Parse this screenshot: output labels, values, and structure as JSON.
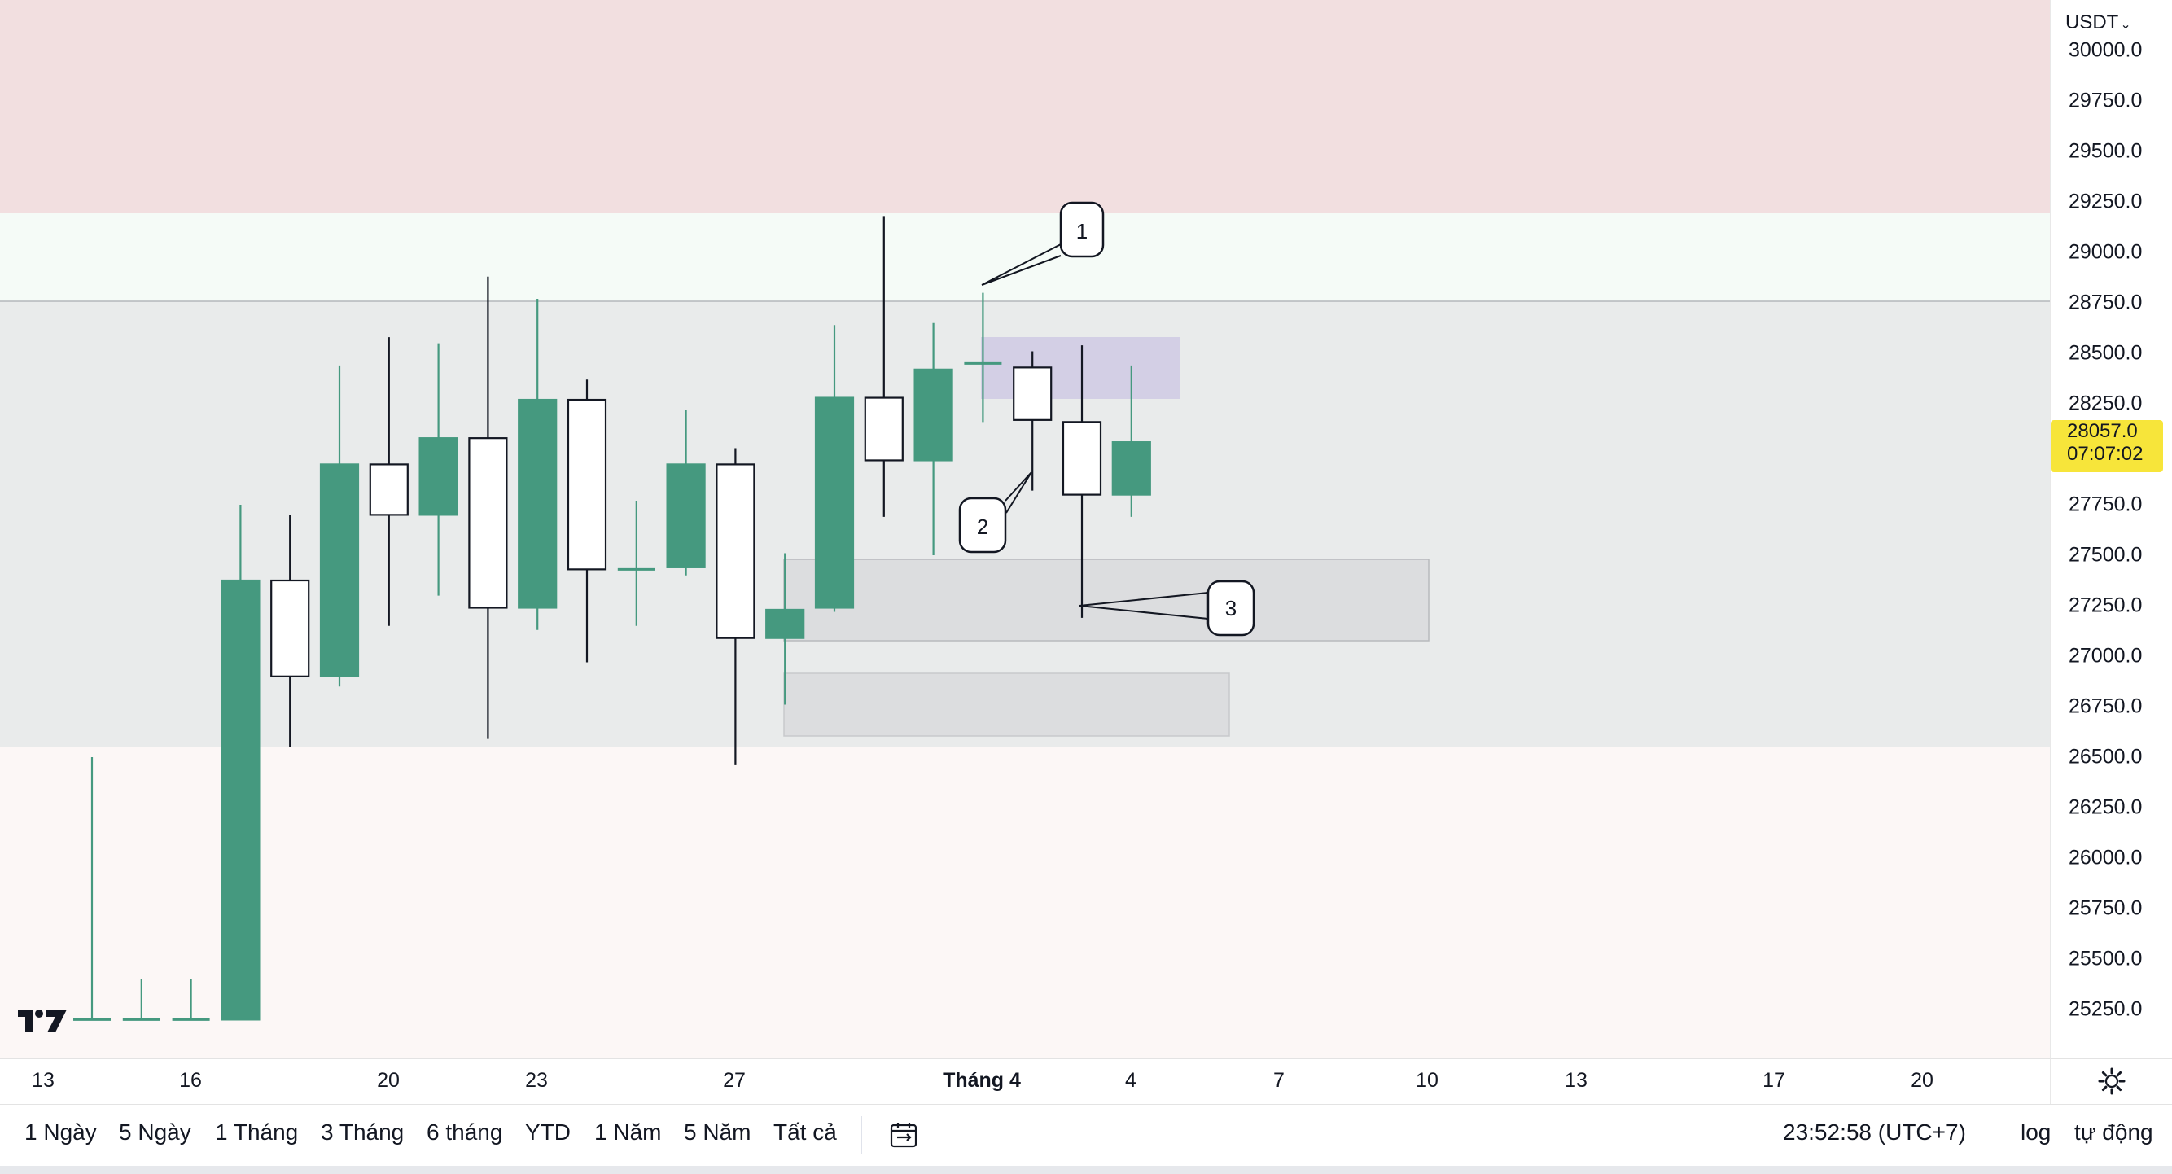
{
  "currency": "USDT",
  "price_axis": {
    "ticks": [
      "30000.0",
      "29750.0",
      "29500.0",
      "29250.0",
      "29000.0",
      "28750.0",
      "28500.0",
      "28250.0",
      "27750.0",
      "27500.0",
      "27250.0",
      "27000.0",
      "26750.0",
      "26500.0",
      "26250.0",
      "26000.0",
      "25750.0",
      "25500.0",
      "25250.0"
    ],
    "tick_values": [
      30000,
      29750,
      29500,
      29250,
      29000,
      28750,
      28500,
      28250,
      27750,
      27500,
      27250,
      27000,
      26750,
      26500,
      26250,
      26000,
      25750,
      25500,
      25250
    ],
    "last_price": "28057.0",
    "countdown": "07:07:02"
  },
  "time_axis": {
    "ticks": [
      {
        "label": "13",
        "bold": false
      },
      {
        "label": "16",
        "bold": false
      },
      {
        "label": "20",
        "bold": false
      },
      {
        "label": "23",
        "bold": false
      },
      {
        "label": "27",
        "bold": false
      },
      {
        "label": "Tháng 4",
        "bold": true
      },
      {
        "label": "4",
        "bold": false
      },
      {
        "label": "7",
        "bold": false
      },
      {
        "label": "10",
        "bold": false
      },
      {
        "label": "13",
        "bold": false
      },
      {
        "label": "17",
        "bold": false
      },
      {
        "label": "20",
        "bold": false
      }
    ]
  },
  "toolbar": {
    "ranges": [
      "1 Ngày",
      "5 Ngày",
      "1 Tháng",
      "3 Tháng",
      "6 tháng",
      "YTD",
      "1 Năm",
      "5 Năm",
      "Tất cả"
    ],
    "clock": "23:52:58 (UTC+7)",
    "log_label": "log",
    "auto_label": "tự động"
  },
  "colors": {
    "up": "#45997f",
    "down_fill": "#ffffff",
    "down_border": "#131722",
    "supply_zone": "#f2dfe0",
    "range_zone": "#e9ebeb",
    "demand_zone": "#fcf7f6",
    "premium_zone": "#f5fbf7",
    "box_gray": "#dcdddf",
    "box_purple": "#d3cfe5",
    "last_price_bg": "#f7e53a"
  },
  "callouts": [
    "1",
    "2",
    "3"
  ],
  "chart_data": {
    "type": "candlestick",
    "y_axis": {
      "min": 25250,
      "max": 30000,
      "ticks": [
        30000,
        29750,
        29500,
        29250,
        29000,
        28750,
        28500,
        28250,
        27750,
        27500,
        27250,
        27000,
        26750,
        26500,
        26250,
        26000,
        25750,
        25500,
        25250
      ]
    },
    "candles": [
      {
        "x": "13",
        "open": 25200,
        "high": 26500,
        "low": 25200,
        "close": 25200,
        "dir": "up"
      },
      {
        "x": "14",
        "open": 25200,
        "high": 25400,
        "low": 25200,
        "close": 25200,
        "dir": "up"
      },
      {
        "x": "15",
        "open": 25200,
        "high": 25400,
        "low": 25200,
        "close": 25200,
        "dir": "up"
      },
      {
        "x": "16",
        "open": 25200,
        "high": 27750,
        "low": 25200,
        "close": 27375,
        "dir": "up"
      },
      {
        "x": "17",
        "open": 27375,
        "high": 27700,
        "low": 26550,
        "close": 26900,
        "dir": "down"
      },
      {
        "x": "18",
        "open": 26900,
        "high": 28440,
        "low": 26850,
        "close": 27950,
        "dir": "up"
      },
      {
        "x": "19",
        "open": 27950,
        "high": 28580,
        "low": 27150,
        "close": 27700,
        "dir": "down"
      },
      {
        "x": "20",
        "open": 27700,
        "high": 28550,
        "low": 27300,
        "close": 28080,
        "dir": "up"
      },
      {
        "x": "21",
        "open": 28080,
        "high": 28880,
        "low": 26590,
        "close": 27240,
        "dir": "down"
      },
      {
        "x": "22",
        "open": 27240,
        "high": 28770,
        "low": 27130,
        "close": 28270,
        "dir": "up"
      },
      {
        "x": "23",
        "open": 28270,
        "high": 28370,
        "low": 26970,
        "close": 27430,
        "dir": "down"
      },
      {
        "x": "24",
        "open": 27430,
        "high": 27770,
        "low": 27150,
        "close": 27430,
        "dir": "up"
      },
      {
        "x": "25",
        "open": 27440,
        "high": 28220,
        "low": 27400,
        "close": 27950,
        "dir": "up"
      },
      {
        "x": "26",
        "open": 27950,
        "high": 28030,
        "low": 26460,
        "close": 27090,
        "dir": "down"
      },
      {
        "x": "27",
        "open": 27090,
        "high": 27510,
        "low": 26760,
        "close": 27230,
        "dir": "up"
      },
      {
        "x": "28",
        "open": 27240,
        "high": 28640,
        "low": 27220,
        "close": 28280,
        "dir": "up"
      },
      {
        "x": "29",
        "open": 28280,
        "high": 29180,
        "low": 27690,
        "close": 27970,
        "dir": "down"
      },
      {
        "x": "30",
        "open": 27970,
        "high": 28650,
        "low": 27500,
        "close": 28420,
        "dir": "up"
      },
      {
        "x": "31",
        "open": 28450,
        "high": 28800,
        "low": 28160,
        "close": 28450,
        "dir": "up"
      },
      {
        "x": "Tháng 4",
        "open": 28430,
        "high": 28510,
        "low": 27820,
        "close": 28170,
        "dir": "down"
      },
      {
        "x": "2",
        "open": 28160,
        "high": 28540,
        "low": 27190,
        "close": 27800,
        "dir": "down"
      },
      {
        "x": "3",
        "open": 27800,
        "high": 28440,
        "low": 27690,
        "close": 28060,
        "dir": "up"
      }
    ]
  }
}
